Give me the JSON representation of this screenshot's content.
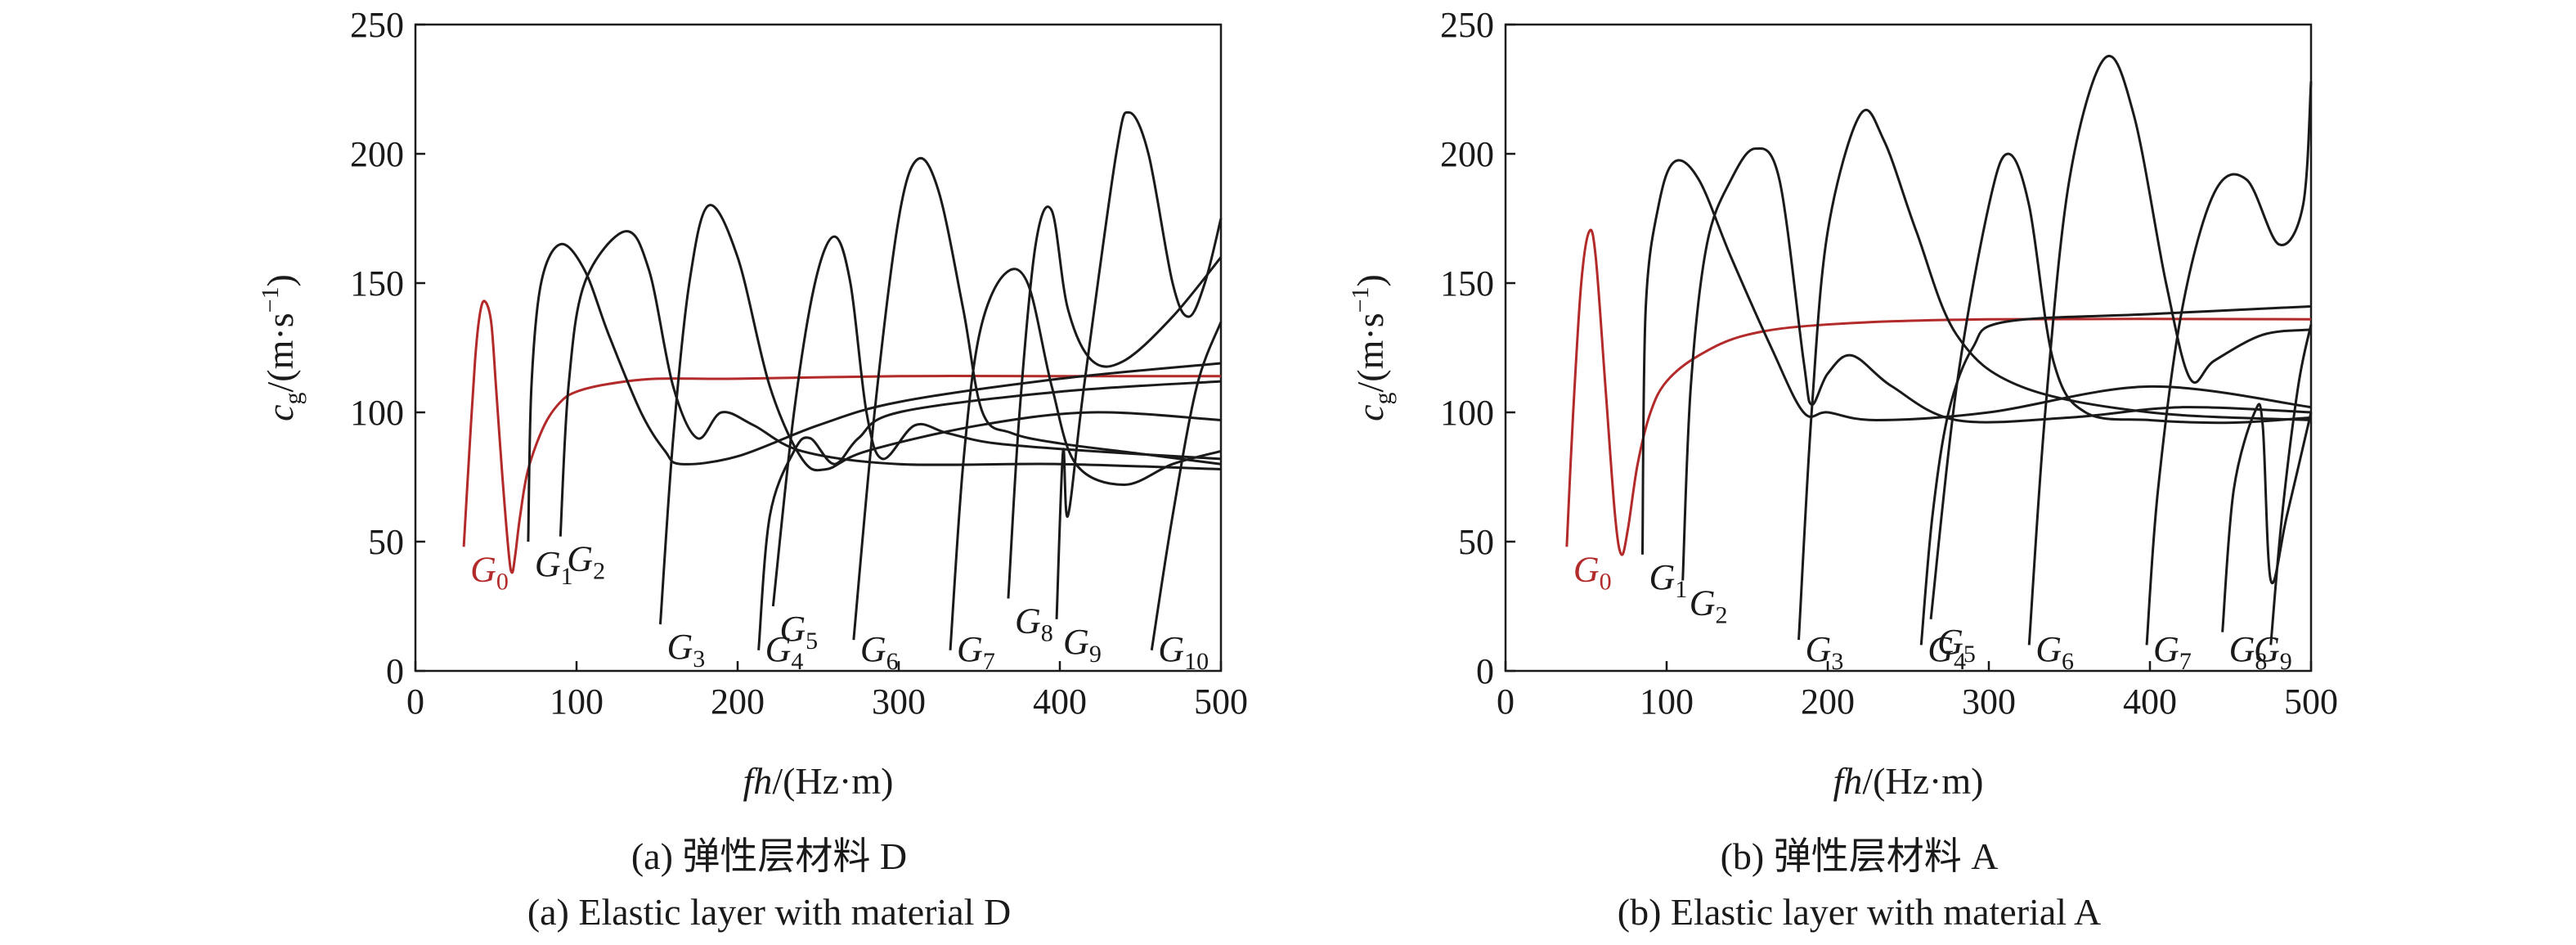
{
  "chart_data": [
    {
      "type": "line",
      "xlabel": [
        "fh",
        "/(Hz·m)"
      ],
      "ylabel": [
        "c",
        "g",
        "/(m·s",
        "−1",
        ")"
      ],
      "caption": "(a) 弹性层材料 D",
      "caption_en": "(a) Elastic layer with material D",
      "xlim": [
        0,
        500
      ],
      "xticks": [
        0,
        100,
        200,
        300,
        400,
        500
      ],
      "ylim": [
        0,
        250
      ],
      "yticks": [
        0,
        50,
        100,
        150,
        200,
        250
      ],
      "series": [
        {
          "name": "G",
          "subscript": "0",
          "color": "#b22a2a",
          "x": [
            30,
            33,
            37,
            40,
            43,
            47,
            50,
            54,
            58,
            60,
            62,
            65,
            70,
            80,
            90,
            100,
            120,
            150,
            200,
            300,
            400,
            500
          ],
          "values": [
            48,
            80,
            120,
            138,
            143,
            135,
            110,
            75,
            45,
            38,
            45,
            60,
            78,
            95,
            104,
            108,
            111,
            113,
            113,
            114,
            114,
            114
          ]
        },
        {
          "name": "G",
          "subscript": "1",
          "color": "#1a1a1a",
          "x": [
            70,
            72,
            78,
            90,
            105,
            120,
            140,
            155,
            165,
            200,
            250,
            300,
            400,
            500
          ],
          "values": [
            50,
            110,
            150,
            165,
            155,
            130,
            100,
            85,
            80,
            83,
            95,
            104,
            113,
            119
          ]
        },
        {
          "name": "G",
          "subscript": "2",
          "color": "#1a1a1a",
          "x": [
            90,
            95,
            105,
            130,
            145,
            160,
            175,
            190,
            210,
            240,
            300,
            400,
            500
          ],
          "values": [
            52,
            110,
            150,
            170,
            155,
            110,
            90,
            100,
            95,
            85,
            80,
            80,
            78
          ]
        },
        {
          "name": "G",
          "subscript": "3",
          "color": "#1a1a1a",
          "x": [
            152,
            160,
            170,
            182,
            200,
            220,
            240,
            255,
            280,
            350,
            420,
            500
          ],
          "values": [
            18,
            90,
            150,
            180,
            160,
            110,
            82,
            78,
            85,
            95,
            100,
            97
          ]
        },
        {
          "name": "G",
          "subscript": "4",
          "color": "#1a1a1a",
          "x": [
            213,
            220,
            235,
            245,
            260,
            275,
            300,
            400,
            500
          ],
          "values": [
            8,
            60,
            85,
            90,
            80,
            90,
            100,
            108,
            112
          ]
        },
        {
          "name": "G",
          "subscript": "5",
          "color": "#1a1a1a",
          "x": [
            222,
            235,
            248,
            260,
            270,
            280,
            290,
            310,
            330,
            360,
            420,
            500
          ],
          "values": [
            25,
            100,
            150,
            168,
            150,
            100,
            82,
            95,
            92,
            88,
            85,
            82
          ]
        },
        {
          "name": "G",
          "subscript": "6",
          "color": "#1a1a1a",
          "x": [
            272,
            285,
            300,
            312,
            325,
            340,
            352,
            370,
            400,
            450,
            500
          ],
          "values": [
            12,
            100,
            175,
            198,
            185,
            140,
            100,
            92,
            88,
            84,
            80
          ]
        },
        {
          "name": "G",
          "subscript": "7",
          "color": "#1a1a1a",
          "x": [
            332,
            340,
            350,
            365,
            380,
            395,
            410,
            440,
            470,
            500
          ],
          "values": [
            8,
            80,
            130,
            153,
            150,
            110,
            80,
            72,
            80,
            85
          ]
        },
        {
          "name": "G",
          "subscript": "8",
          "color": "#1a1a1a",
          "x": [
            368,
            375,
            385,
            395,
            405,
            420,
            440,
            470,
            500
          ],
          "values": [
            28,
            100,
            165,
            178,
            140,
            120,
            120,
            137,
            160
          ]
        },
        {
          "name": "G",
          "subscript": "9",
          "color": "#1a1a1a",
          "x": [
            398,
            402,
            405,
            415,
            435,
            443,
            455,
            470,
            480,
            490,
            500
          ],
          "values": [
            20,
            85,
            60,
            110,
            200,
            216,
            200,
            150,
            137,
            150,
            175
          ]
        },
        {
          "name": "G",
          "subscript": "10",
          "color": "#1a1a1a",
          "x": [
            457,
            470,
            485,
            500
          ],
          "values": [
            8,
            60,
            110,
            135
          ]
        }
      ]
    },
    {
      "type": "line",
      "xlabel": [
        "fh",
        "/(Hz·m)"
      ],
      "ylabel": [
        "c",
        "g",
        "/(m·s",
        "−1",
        ")"
      ],
      "caption": "(b) 弹性层材料 A",
      "caption_en": "(b) Elastic layer with material A",
      "xlim": [
        0,
        500
      ],
      "xticks": [
        0,
        100,
        200,
        300,
        400,
        500
      ],
      "ylim": [
        0,
        250
      ],
      "yticks": [
        0,
        50,
        100,
        150,
        200,
        250
      ],
      "series": [
        {
          "name": "G",
          "subscript": "0",
          "color": "#b22a2a",
          "x": [
            38,
            42,
            47,
            52,
            56,
            62,
            68,
            72,
            76,
            82,
            90,
            100,
            120,
            150,
            200,
            300,
            500
          ],
          "values": [
            48,
            100,
            150,
            170,
            160,
            110,
            60,
            45,
            55,
            80,
            100,
            112,
            122,
            130,
            134,
            136,
            136
          ]
        },
        {
          "name": "G",
          "subscript": "1",
          "color": "#1a1a1a",
          "x": [
            85,
            87,
            95,
            105,
            120,
            140,
            165,
            185,
            200,
            230,
            300,
            400,
            500
          ],
          "values": [
            45,
            140,
            180,
            197,
            190,
            160,
            125,
            100,
            100,
            97,
            100,
            110,
            102
          ]
        },
        {
          "name": "G",
          "subscript": "2",
          "color": "#1a1a1a",
          "x": [
            110,
            115,
            125,
            140,
            155,
            170,
            185,
            190,
            200,
            215,
            240,
            280,
            350,
            420,
            500
          ],
          "values": [
            35,
            110,
            165,
            190,
            202,
            190,
            120,
            103,
            115,
            122,
            110,
            97,
            98,
            102,
            100
          ]
        },
        {
          "name": "G",
          "subscript": "3",
          "color": "#1a1a1a",
          "x": [
            182,
            190,
            200,
            220,
            235,
            255,
            280,
            320,
            400,
            500
          ],
          "values": [
            12,
            100,
            170,
            215,
            205,
            170,
            130,
            110,
            100,
            97
          ]
        },
        {
          "name": "G",
          "subscript": "4",
          "color": "#1a1a1a",
          "x": [
            258,
            265,
            275,
            290,
            310,
            400,
            500
          ],
          "values": [
            10,
            60,
            100,
            125,
            135,
            138,
            141
          ]
        },
        {
          "name": "G",
          "subscript": "5",
          "color": "#1a1a1a",
          "x": [
            264,
            280,
            300,
            312,
            325,
            340,
            360,
            400,
            450,
            500
          ],
          "values": [
            20,
            110,
            180,
            200,
            180,
            120,
            100,
            97,
            96,
            98
          ]
        },
        {
          "name": "G",
          "subscript": "6",
          "color": "#1a1a1a",
          "x": [
            325,
            335,
            350,
            372,
            390,
            410,
            425,
            440,
            470,
            500
          ],
          "values": [
            10,
            100,
            190,
            237,
            215,
            150,
            113,
            120,
            130,
            132
          ]
        },
        {
          "name": "G",
          "subscript": "7",
          "color": "#1a1a1a",
          "x": [
            398,
            405,
            420,
            440,
            460,
            480,
            495,
            500
          ],
          "values": [
            10,
            70,
            140,
            185,
            190,
            165,
            180,
            228
          ]
        },
        {
          "name": "G",
          "subscript": "8",
          "color": "#1a1a1a",
          "x": [
            445,
            452,
            465,
            470,
            475,
            485,
            500
          ],
          "values": [
            15,
            70,
            100,
            95,
            35,
            60,
            100
          ]
        },
        {
          "name": "G",
          "subscript": "9",
          "color": "#1a1a1a",
          "x": [
            475,
            482,
            492,
            500
          ],
          "values": [
            10,
            60,
            110,
            134
          ]
        }
      ]
    }
  ]
}
